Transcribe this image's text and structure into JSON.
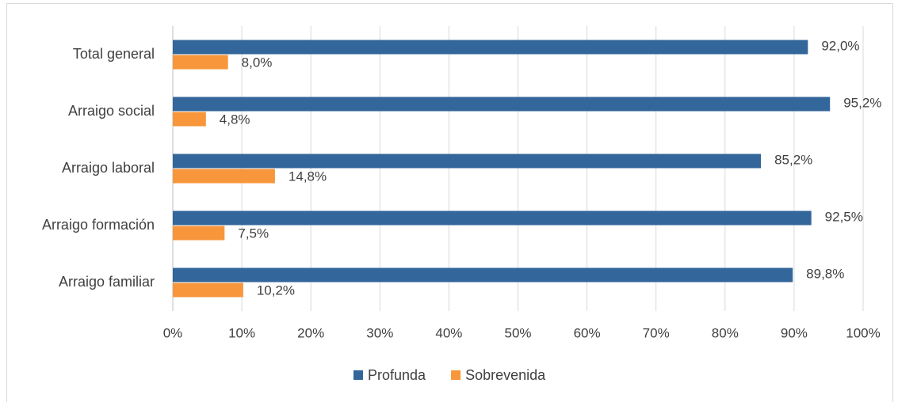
{
  "chart_data": {
    "type": "bar",
    "orientation": "horizontal",
    "categories": [
      "Total general",
      "Arraigo social",
      "Arraigo laboral",
      "Arraigo formación",
      "Arraigo familiar"
    ],
    "series": [
      {
        "name": "Profunda",
        "color": "#33669a",
        "values": [
          92.0,
          95.2,
          85.2,
          92.5,
          89.8
        ],
        "value_labels": [
          "92,0%",
          "95,2%",
          "85,2%",
          "92,5%",
          "89,8%"
        ]
      },
      {
        "name": "Sobrevenida",
        "color": "#f7963a",
        "values": [
          8.0,
          4.8,
          14.8,
          7.5,
          10.2
        ],
        "value_labels": [
          "8,0%",
          "4,8%",
          "14,8%",
          "7,5%",
          "10,2%"
        ]
      }
    ],
    "xlim": [
      0,
      100
    ],
    "xticks": [
      {
        "value": 0,
        "label": "0%"
      },
      {
        "value": 10,
        "label": "10%"
      },
      {
        "value": 20,
        "label": "20%"
      },
      {
        "value": 30,
        "label": "30%"
      },
      {
        "value": 40,
        "label": "40%"
      },
      {
        "value": 50,
        "label": "50%"
      },
      {
        "value": 60,
        "label": "60%"
      },
      {
        "value": 70,
        "label": "70%"
      },
      {
        "value": 80,
        "label": "80%"
      },
      {
        "value": 90,
        "label": "90%"
      },
      {
        "value": 100,
        "label": "100%"
      }
    ],
    "grid": true,
    "legend": "bottom"
  }
}
